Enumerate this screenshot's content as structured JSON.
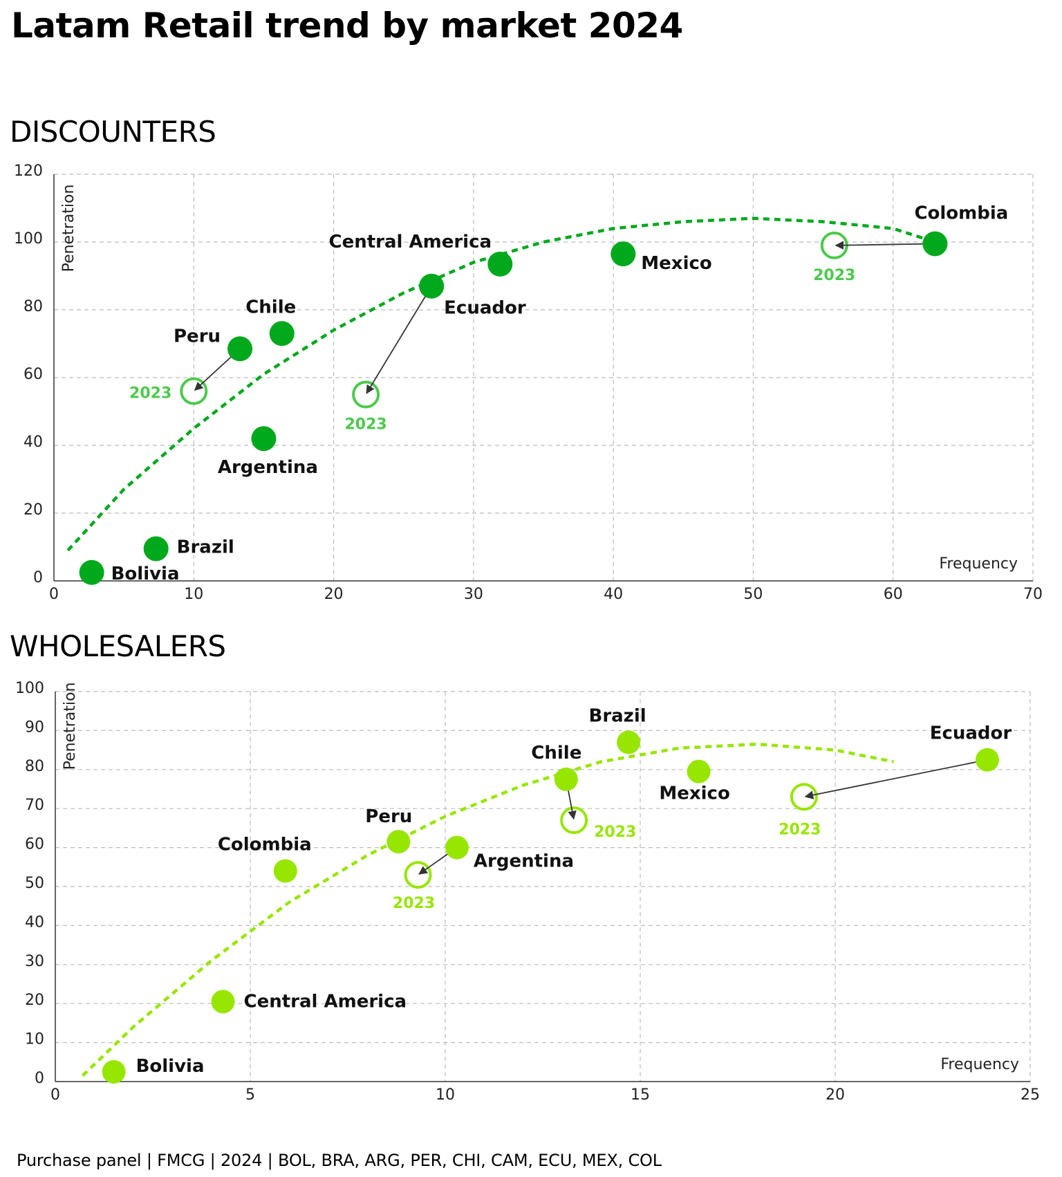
{
  "title": "Latam Retail trend by market 2024",
  "footer": "Purchase panel | FMCG | 2024 | BOL, BRA, ARG, PER, CHI, CAM, ECU, MEX, COL",
  "colors": {
    "discounters": "#00a81c",
    "discounters_prev": "#4cc94c",
    "wholesalers": "#96e600",
    "wholesalers_prev": "#96e600",
    "arrow": "#333333",
    "grid": "#bbbbbb"
  },
  "chart_data": [
    {
      "type": "scatter",
      "title": "DISCOUNTERS",
      "xlabel": "Frequency",
      "ylabel": "Penetration",
      "xlim": [
        0,
        70
      ],
      "ylim": [
        0,
        120
      ],
      "xticks": [
        0,
        10,
        20,
        30,
        40,
        50,
        60,
        70
      ],
      "yticks": [
        0,
        20,
        40,
        60,
        80,
        100,
        120
      ],
      "grid": true,
      "trendline": "dashed quadratic",
      "trend_points": [
        [
          1,
          9
        ],
        [
          5,
          27
        ],
        [
          10,
          45
        ],
        [
          15,
          61
        ],
        [
          20,
          74
        ],
        [
          25,
          85
        ],
        [
          30,
          94
        ],
        [
          35,
          100
        ],
        [
          40,
          104
        ],
        [
          45,
          106
        ],
        [
          50,
          107
        ],
        [
          55,
          106
        ],
        [
          60,
          104
        ],
        [
          63,
          100
        ]
      ],
      "points": [
        {
          "label": "Bolivia",
          "x": 2.7,
          "y": 2.5
        },
        {
          "label": "Brazil",
          "x": 7.3,
          "y": 9.5
        },
        {
          "label": "Peru",
          "x": 13.3,
          "y": 68.5,
          "prev_label": "2023",
          "prev_x": 10,
          "prev_y": 56
        },
        {
          "label": "Chile",
          "x": 16.3,
          "y": 73
        },
        {
          "label": "Argentina",
          "x": 15,
          "y": 42
        },
        {
          "label": "Ecuador",
          "x": 27,
          "y": 87,
          "prev_label": "2023",
          "prev_x": 22.3,
          "prev_y": 55
        },
        {
          "label": "Central America",
          "x": 31.9,
          "y": 93.5
        },
        {
          "label": "Mexico",
          "x": 40.7,
          "y": 96.5
        },
        {
          "label": "Colombia",
          "x": 63,
          "y": 99.5,
          "prev_label": "2023",
          "prev_x": 55.8,
          "prev_y": 99
        }
      ]
    },
    {
      "type": "scatter",
      "title": "WHOLESALERS",
      "xlabel": "Frequency",
      "ylabel": "Penetration",
      "xlim": [
        0,
        25
      ],
      "ylim": [
        0,
        100
      ],
      "xticks": [
        0,
        5,
        10,
        15,
        20,
        25
      ],
      "yticks": [
        0,
        10,
        20,
        30,
        40,
        50,
        60,
        70,
        80,
        90,
        100
      ],
      "grid": true,
      "trendline": "dashed quadratic",
      "trend_points": [
        [
          0.7,
          1.5
        ],
        [
          2,
          14
        ],
        [
          4,
          31
        ],
        [
          6,
          46
        ],
        [
          8,
          58
        ],
        [
          10,
          68
        ],
        [
          12,
          76
        ],
        [
          14,
          82
        ],
        [
          16,
          85.5
        ],
        [
          18,
          86.5
        ],
        [
          20,
          85
        ],
        [
          21.5,
          82
        ]
      ],
      "points": [
        {
          "label": "Bolivia",
          "x": 1.5,
          "y": 2.5
        },
        {
          "label": "Central America",
          "x": 4.3,
          "y": 20.5
        },
        {
          "label": "Colombia",
          "x": 5.9,
          "y": 54
        },
        {
          "label": "Peru",
          "x": 8.8,
          "y": 61.5
        },
        {
          "label": "Argentina",
          "x": 10.3,
          "y": 60,
          "prev_label": "2023",
          "prev_x": 9.3,
          "prev_y": 53
        },
        {
          "label": "Chile",
          "x": 13.1,
          "y": 77.5,
          "prev_label": "2023",
          "prev_x": 13.3,
          "prev_y": 67
        },
        {
          "label": "Brazil",
          "x": 14.7,
          "y": 87
        },
        {
          "label": "Mexico",
          "x": 16.5,
          "y": 79.5
        },
        {
          "label": "Ecuador",
          "x": 23.9,
          "y": 82.5,
          "prev_label": "2023",
          "prev_x": 19.2,
          "prev_y": 73
        }
      ]
    }
  ]
}
